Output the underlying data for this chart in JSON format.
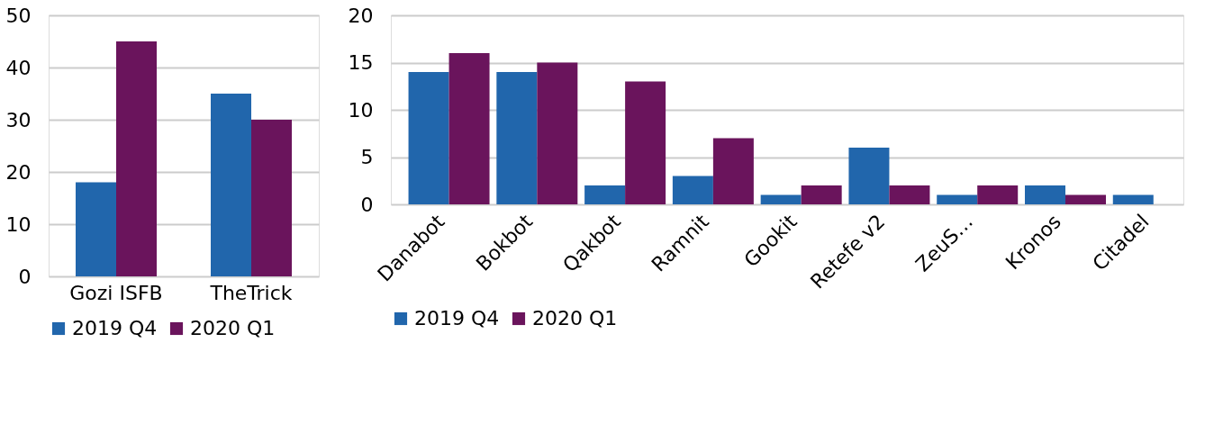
{
  "chart_data": [
    {
      "type": "bar",
      "categories": [
        "Gozi ISFB",
        "TheTrick"
      ],
      "series": [
        {
          "name": "2019 Q4",
          "color": "#2166ac",
          "values": [
            18,
            35
          ]
        },
        {
          "name": "2020 Q1",
          "color": "#6a145c",
          "values": [
            45,
            30
          ]
        }
      ],
      "ylim": [
        0,
        50
      ],
      "yticks": [
        0,
        10,
        20,
        30,
        40,
        50
      ],
      "grid": "y",
      "legend": "bottom"
    },
    {
      "type": "bar",
      "categories": [
        "Danabot",
        "Bokbot",
        "Qakbot",
        "Ramnit",
        "Gookit",
        "Retefe v2",
        "ZeuS…",
        "Kronos",
        "Citadel"
      ],
      "series": [
        {
          "name": "2019 Q4",
          "color": "#2166ac",
          "values": [
            14,
            14,
            2,
            3,
            1,
            6,
            1,
            2,
            1
          ]
        },
        {
          "name": "2020 Q1",
          "color": "#6a145c",
          "values": [
            16,
            15,
            13,
            7,
            2,
            2,
            2,
            1,
            null
          ]
        }
      ],
      "ylim": [
        0,
        20
      ],
      "yticks": [
        0,
        5,
        10,
        15,
        20
      ],
      "grid": "y",
      "legend": "bottom"
    }
  ]
}
